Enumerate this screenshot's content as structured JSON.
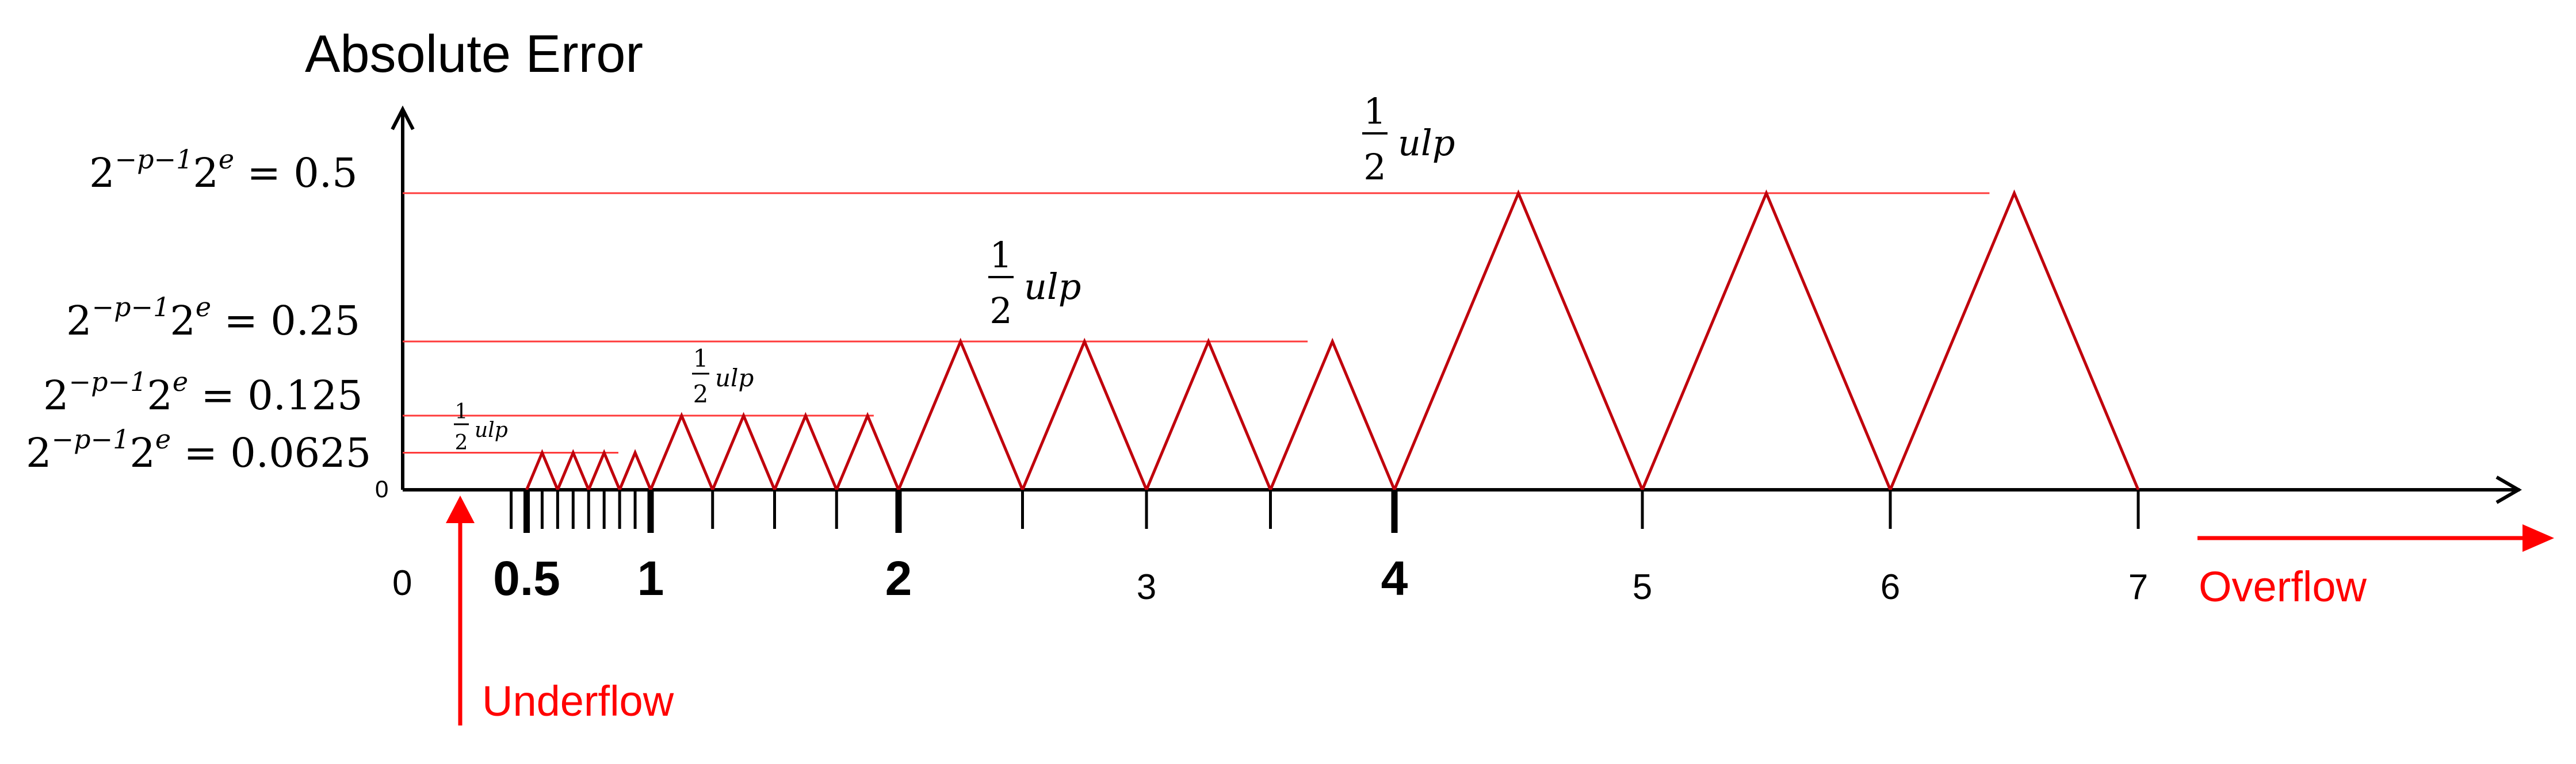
{
  "title": "Absolute Error",
  "origin_label": "0",
  "zero_y_label": "0",
  "y_levels": [
    {
      "base": "2",
      "exp1": "−p−1",
      "mid": "2",
      "exp2": "e",
      "rhs": " = 0.5",
      "value": 0.5
    },
    {
      "base": "2",
      "exp1": "−p−1",
      "mid": "2",
      "exp2": "e",
      "rhs": " = 0.25",
      "value": 0.25
    },
    {
      "base": "2",
      "exp1": "−p−1",
      "mid": "2",
      "exp2": "e",
      "rhs": " = 0.125",
      "value": 0.125
    },
    {
      "base": "2",
      "exp1": "−p−1",
      "mid": "2",
      "exp2": "e",
      "rhs": " = 0.0625",
      "value": 0.0625
    }
  ],
  "half_ulp": {
    "num": "1",
    "den": "2",
    "text": "ulp"
  },
  "x_tick_labels": [
    {
      "text": "0.5",
      "x": 0.5,
      "bold": true
    },
    {
      "text": "1",
      "x": 1,
      "bold": true
    },
    {
      "text": "2",
      "x": 2,
      "bold": true
    },
    {
      "text": "3",
      "x": 3,
      "bold": false
    },
    {
      "text": "4",
      "x": 4,
      "bold": true
    },
    {
      "text": "5",
      "x": 5,
      "bold": false
    },
    {
      "text": "6",
      "x": 6,
      "bold": false
    },
    {
      "text": "7",
      "x": 7,
      "bold": false
    }
  ],
  "underflow_label": "Underflow",
  "overflow_label": "Overflow",
  "colors": {
    "axis": "#000000",
    "error": "#c0000c",
    "level": "#ff3b3b",
    "annot": "#ff0000"
  },
  "ticks": [
    0.4375,
    0.5,
    0.5625,
    0.625,
    0.6875,
    0.75,
    0.8125,
    0.875,
    0.9375,
    1,
    1.25,
    1.5,
    1.75,
    2,
    2.5,
    3,
    3.5,
    4,
    5,
    6,
    7
  ],
  "bold_ticks": [
    0.5,
    1,
    2,
    4
  ],
  "zigzag_segments": [
    {
      "from": 0.5,
      "to": 1,
      "step": 0.125,
      "peak": 0.0625
    },
    {
      "from": 1,
      "to": 2,
      "step": 0.25,
      "peak": 0.125
    },
    {
      "from": 2,
      "to": 4,
      "step": 0.5,
      "peak": 0.25
    },
    {
      "from": 4,
      "to": 7,
      "step": 1,
      "peak": 0.5
    }
  ],
  "level_line_ends": [
    6.4,
    3.65,
    1.9,
    0.87
  ]
}
